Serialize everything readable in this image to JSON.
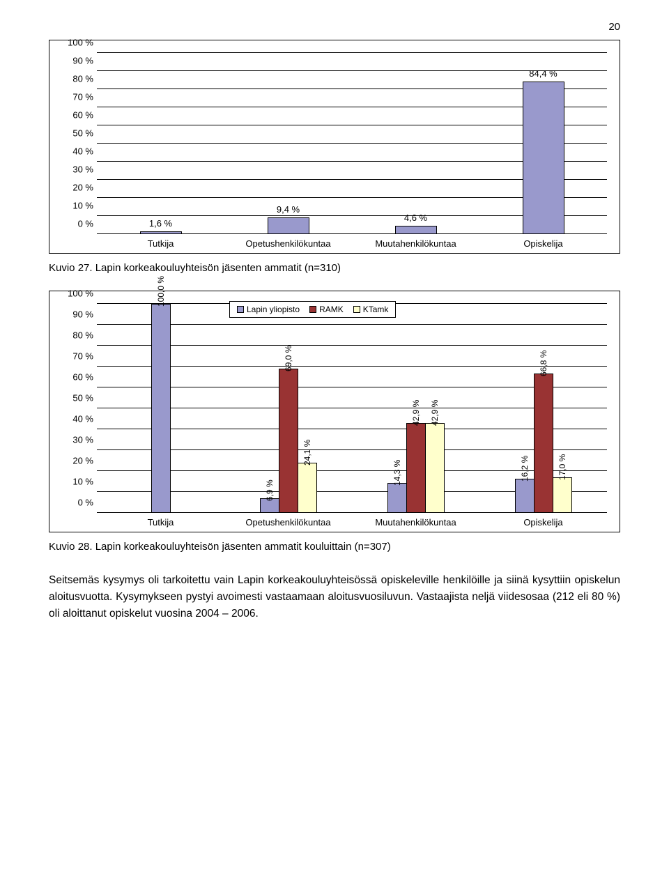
{
  "page_number": "20",
  "chart1": {
    "type": "bar",
    "y_ticks": [
      "0 %",
      "10 %",
      "20 %",
      "30 %",
      "40 %",
      "50 %",
      "60 %",
      "70 %",
      "80 %",
      "90 %",
      "100 %"
    ],
    "ylim_max": 100,
    "categories": [
      "Tutkija",
      "Opetushenkilökuntaa",
      "Muutahenkilökuntaa",
      "Opiskelija"
    ],
    "values": [
      1.6,
      9.4,
      4.6,
      84.4
    ],
    "value_labels": [
      "1,6 %",
      "9,4 %",
      "4,6 %",
      "84,4 %"
    ],
    "bar_color": "#9999cc",
    "border_color": "#000000",
    "grid_color": "#000000"
  },
  "caption1": "Kuvio 27. Lapin korkeakouluyhteisön jäsenten ammatit (n=310)",
  "chart2": {
    "type": "grouped-bar",
    "y_ticks": [
      "0 %",
      "10 %",
      "20 %",
      "30 %",
      "40 %",
      "50 %",
      "60 %",
      "70 %",
      "80 %",
      "90 %",
      "100 %"
    ],
    "ylim_max": 100,
    "categories": [
      "Tutkija",
      "Opetushenkilökuntaa",
      "Muutahenkilökuntaa",
      "Opiskelija"
    ],
    "series": [
      {
        "name": "Lapin yliopisto",
        "color": "#9999cc"
      },
      {
        "name": "RAMK",
        "color": "#993333"
      },
      {
        "name": "KTamk",
        "color": "#ffffcc"
      }
    ],
    "groups": [
      [
        {
          "v": 100.0,
          "l": "100,0 %"
        }
      ],
      [
        {
          "v": 6.9,
          "l": "6,9 %"
        },
        {
          "v": 69.0,
          "l": "69,0 %"
        },
        {
          "v": 24.1,
          "l": "24,1 %"
        }
      ],
      [
        {
          "v": 14.3,
          "l": "14,3 %"
        },
        {
          "v": 42.9,
          "l": "42,9 %"
        },
        {
          "v": 42.9,
          "l": "42,9 %"
        }
      ],
      [
        {
          "v": 16.2,
          "l": "16,2 %"
        },
        {
          "v": 66.8,
          "l": "66,8 %"
        },
        {
          "v": 17.0,
          "l": "17,0 %"
        }
      ]
    ]
  },
  "caption2": "Kuvio 28. Lapin korkeakouluyhteisön jäsenten ammatit kouluittain (n=307)",
  "body_text": "Seitsemäs kysymys oli tarkoitettu vain Lapin korkeakouluyhteisössä opiskeleville henkilöille ja siinä kysyttiin opiskelun aloitusvuotta. Kysymykseen pystyi avoimesti vastaamaan aloitusvuosiluvun. Vastaajista neljä viidesosaa (212 eli 80 %) oli aloittanut opiskelut vuosina 2004 – 2006."
}
